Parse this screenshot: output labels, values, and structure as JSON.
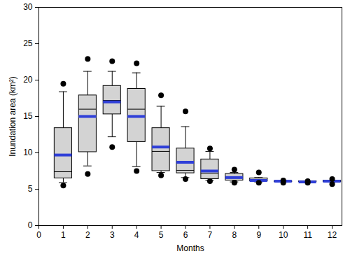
{
  "chart_data": {
    "type": "box",
    "x_label": "Months",
    "y_label": "Inundation area (km²)",
    "x": [
      1,
      2,
      3,
      4,
      5,
      6,
      7,
      8,
      9,
      10,
      11,
      12
    ],
    "whisker_low": [
      5.9,
      8.2,
      12.2,
      8.1,
      7.3,
      6.6,
      6.2,
      6.0,
      6.0,
      6.0,
      6.0,
      6.0
    ],
    "q1": [
      6.5,
      10.1,
      15.3,
      11.5,
      7.5,
      7.2,
      6.4,
      6.2,
      6.1,
      6.0,
      6.0,
      6.0
    ],
    "median": [
      7.4,
      16.0,
      17.2,
      16.0,
      10.2,
      7.6,
      7.2,
      6.6,
      6.2,
      6.1,
      6.1,
      6.1
    ],
    "q3": [
      13.4,
      17.9,
      19.2,
      18.8,
      13.4,
      10.6,
      9.1,
      7.1,
      6.5,
      6.1,
      6.1,
      6.2
    ],
    "whisker_high": [
      18.4,
      21.2,
      21.2,
      21.0,
      16.4,
      13.6,
      10.2,
      7.3,
      6.6,
      6.2,
      6.1,
      6.2
    ],
    "outlier_low": [
      5.5,
      7.1,
      10.8,
      7.5,
      6.9,
      6.4,
      6.1,
      5.9,
      5.9,
      5.9,
      5.9,
      5.7
    ],
    "outlier_high": [
      19.5,
      22.9,
      22.6,
      22.3,
      17.9,
      15.7,
      10.6,
      7.7,
      7.3,
      6.2,
      6.1,
      6.4
    ],
    "mean": {
      "values": [
        9.7,
        15.0,
        17.0,
        15.0,
        10.8,
        8.7,
        7.5,
        6.6,
        6.2,
        6.1,
        6.0,
        6.1
      ],
      "color": "#2f3fd8"
    },
    "color": "#d3d3d3",
    "xlim": [
      0,
      12.4
    ],
    "xticks": [
      0,
      1,
      2,
      3,
      4,
      5,
      6,
      7,
      8,
      9,
      10,
      11,
      12
    ],
    "ylim": [
      0,
      30
    ],
    "yticks": [
      0,
      5,
      10,
      15,
      20,
      25,
      30
    ],
    "grid": false
  }
}
